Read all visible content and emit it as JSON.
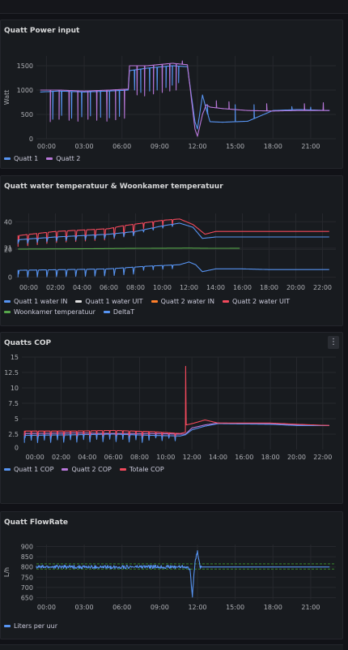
{
  "colors": {
    "blue": "#5794f2",
    "purple": "#b877d9",
    "white": "#e0e0e0",
    "orange": "#ff7f2a",
    "red": "#f2495c",
    "green": "#56a64b",
    "grid": "#26282d",
    "threshold": "#37872d"
  },
  "panels": [
    {
      "title": "Quatt Power input",
      "menu_icon": "kebab-menu-icon",
      "legend": [
        {
          "name": "Quatt 1",
          "color": "#5794f2"
        },
        {
          "name": "Quatt 2",
          "color": "#b877d9"
        }
      ]
    },
    {
      "title": "Quatt water temperatuur & Woonkamer temperatuur",
      "legend": [
        {
          "name": "Quatt 1 water IN",
          "color": "#5794f2"
        },
        {
          "name": "Quatt 1 water UIT",
          "color": "#e0e0e0"
        },
        {
          "name": "Quatt 2 water IN",
          "color": "#ff7f2a"
        },
        {
          "name": "Quatt 2 water UIT",
          "color": "#f2495c"
        },
        {
          "name": "Woonkamer temperatuur",
          "color": "#56a64b"
        },
        {
          "name": "DeltaT",
          "color": "#5794f2"
        }
      ]
    },
    {
      "title": "Quatts COP",
      "menu_label": "⋮",
      "legend": [
        {
          "name": "Quatt 1 COP",
          "color": "#5794f2"
        },
        {
          "name": "Quatt 2 COP",
          "color": "#b877d9"
        },
        {
          "name": "Totale COP",
          "color": "#f2495c"
        }
      ]
    },
    {
      "title": "Quatt FlowRate",
      "legend": [
        {
          "name": "Liters per uur",
          "color": "#5794f2"
        }
      ]
    }
  ],
  "chart_data": [
    {
      "type": "line",
      "title": "Quatt Power input",
      "ylabel": "Watt",
      "ylim": [
        0,
        1700
      ],
      "yticks": [
        "0",
        "500",
        "1000",
        "1500"
      ],
      "ytick_values": [
        0,
        500,
        1000,
        1500
      ],
      "xlim": [
        -0.8,
        23
      ],
      "xticks": [
        "00:00",
        "03:00",
        "06:00",
        "09:00",
        "12:00",
        "15:00",
        "18:00",
        "21:00"
      ],
      "xtick_values": [
        0,
        3,
        6,
        9,
        12,
        15,
        18,
        21
      ],
      "grid": true,
      "legend_position": "bottom-left",
      "series": [
        {
          "name": "Quatt 1",
          "points": [
            [
              -0.5,
              960
            ],
            [
              1,
              980
            ],
            [
              3,
              960
            ],
            [
              5,
              980
            ],
            [
              6.5,
              1000
            ],
            [
              6.6,
              1400
            ],
            [
              8,
              1450
            ],
            [
              10,
              1500
            ],
            [
              11.2,
              1480
            ],
            [
              11.8,
              350
            ],
            [
              12,
              200
            ],
            [
              12.4,
              900
            ],
            [
              12.7,
              600
            ],
            [
              13,
              350
            ],
            [
              14,
              340
            ],
            [
              15,
              350
            ],
            [
              16,
              360
            ],
            [
              18,
              580
            ],
            [
              20,
              600
            ],
            [
              22.5,
              580
            ]
          ],
          "spikes": [
            [
              0.5,
              400
            ],
            [
              1.2,
              480
            ],
            [
              2,
              420
            ],
            [
              2.8,
              450
            ],
            [
              3.5,
              470
            ],
            [
              4.3,
              440
            ],
            [
              5,
              430
            ],
            [
              5.8,
              460
            ],
            [
              7,
              1000
            ],
            [
              7.5,
              950
            ],
            [
              8.2,
              980
            ],
            [
              8.8,
              1000
            ],
            [
              9.5,
              1050
            ],
            [
              10,
              1100
            ],
            [
              10.5,
              1150
            ],
            [
              12.8,
              700
            ],
            [
              15,
              700
            ],
            [
              16.5,
              700
            ],
            [
              19.5,
              660
            ],
            [
              21,
              650
            ]
          ]
        },
        {
          "name": "Quatt 2",
          "points": [
            [
              -0.5,
              1000
            ],
            [
              1,
              1000
            ],
            [
              3,
              980
            ],
            [
              5,
              1000
            ],
            [
              6.5,
              1020
            ],
            [
              6.6,
              1500
            ],
            [
              8,
              1500
            ],
            [
              10,
              1550
            ],
            [
              11.2,
              1520
            ],
            [
              11.8,
              200
            ],
            [
              12,
              50
            ],
            [
              12.4,
              500
            ],
            [
              12.7,
              700
            ],
            [
              13,
              650
            ],
            [
              14,
              620
            ],
            [
              15,
              600
            ],
            [
              16,
              580
            ],
            [
              18,
              570
            ],
            [
              20,
              580
            ],
            [
              22.5,
              580
            ]
          ],
          "spikes": [
            [
              0.3,
              350
            ],
            [
              1,
              400
            ],
            [
              1.8,
              380
            ],
            [
              2.5,
              360
            ],
            [
              3.3,
              400
            ],
            [
              4,
              380
            ],
            [
              4.8,
              360
            ],
            [
              5.5,
              390
            ],
            [
              6.2,
              420
            ],
            [
              7.2,
              900
            ],
            [
              7.8,
              880
            ],
            [
              8.5,
              920
            ],
            [
              9.2,
              950
            ],
            [
              9.8,
              980
            ],
            [
              10.3,
              1000
            ],
            [
              10.8,
              1600
            ],
            [
              13.5,
              780
            ],
            [
              14.5,
              760
            ],
            [
              17.5,
              720
            ],
            [
              20.5,
              720
            ],
            [
              22,
              740
            ]
          ]
        }
      ]
    },
    {
      "type": "line",
      "title": "Quatt water temperatuur & Woonkamer temperatuur",
      "ylabel": "",
      "ylim": [
        -2,
        46
      ],
      "yticks": [
        "0",
        "20",
        "21",
        "40"
      ],
      "ytick_values": [
        0,
        20,
        21,
        40
      ],
      "xlim": [
        -1,
        23
      ],
      "xticks": [
        "00:00",
        "02:00",
        "04:00",
        "06:00",
        "08:00",
        "10:00",
        "12:00",
        "14:00",
        "16:00",
        "18:00",
        "20:00",
        "22:00"
      ],
      "xtick_values": [
        0,
        2,
        4,
        6,
        8,
        10,
        12,
        14,
        16,
        18,
        20,
        22
      ],
      "grid": true,
      "legend_position": "bottom-left",
      "series": [
        {
          "name": "Quatt 2 water UIT",
          "points": [
            [
              -0.8,
              30
            ],
            [
              2,
              33
            ],
            [
              4,
              34
            ],
            [
              6,
              35
            ],
            [
              7,
              37
            ],
            [
              10,
              41
            ],
            [
              11.3,
              42
            ],
            [
              12.3,
              38
            ],
            [
              13.2,
              31
            ],
            [
              14,
              33
            ],
            [
              15,
              33
            ],
            [
              18,
              33
            ],
            [
              20,
              33
            ],
            [
              22.5,
              33
            ]
          ],
          "sawtooth": {
            "from": -0.8,
            "to": 11.3,
            "period": 0.72,
            "drop": 8
          }
        },
        {
          "name": "Quatt 1 water IN",
          "points": [
            [
              -0.8,
              27
            ],
            [
              2,
              29
            ],
            [
              4,
              30
            ],
            [
              6,
              31
            ],
            [
              8,
              33
            ],
            [
              10,
              37
            ],
            [
              11.3,
              39
            ],
            [
              12.3,
              36
            ],
            [
              13,
              28
            ],
            [
              14,
              29
            ],
            [
              18,
              29
            ],
            [
              20,
              29
            ],
            [
              22.5,
              29
            ]
          ],
          "sawtooth": {
            "from": -0.8,
            "to": 11.3,
            "period": 0.72,
            "drop": 3
          }
        },
        {
          "name": "Woonkamer temperatuur",
          "points": [
            [
              -0.8,
              20.3
            ],
            [
              4,
              20.5
            ],
            [
              8,
              20.8
            ],
            [
              12,
              21
            ],
            [
              14,
              20.8
            ],
            [
              15.8,
              20.9
            ]
          ]
        },
        {
          "name": "DeltaT",
          "points": [
            [
              -0.8,
              5
            ],
            [
              3,
              5.5
            ],
            [
              6,
              6
            ],
            [
              9,
              8
            ],
            [
              11.3,
              9
            ],
            [
              12,
              11
            ],
            [
              12.5,
              9
            ],
            [
              13,
              4
            ],
            [
              14,
              6
            ],
            [
              16,
              6
            ],
            [
              18,
              5.5
            ],
            [
              20,
              5.5
            ],
            [
              22.5,
              5.5
            ]
          ],
          "sawtooth": {
            "from": -0.8,
            "to": 11.3,
            "period": 0.72,
            "drop": 5
          }
        }
      ]
    },
    {
      "type": "line",
      "title": "Quatts COP",
      "ylabel": "",
      "ylim": [
        0,
        15
      ],
      "yticks": [
        "2.5",
        "5",
        "7.5",
        "10",
        "12.5",
        "15"
      ],
      "ytick_values": [
        2.5,
        5,
        7.5,
        10,
        12.5,
        15
      ],
      "extra_ytick": {
        "label": "0",
        "value": 0.3
      },
      "xlim": [
        -1,
        23
      ],
      "xticks": [
        "00:00",
        "02:00",
        "04:00",
        "06:00",
        "08:00",
        "10:00",
        "12:00",
        "14:00",
        "16:00",
        "18:00",
        "20:00",
        "22:00"
      ],
      "xtick_values": [
        0,
        2,
        4,
        6,
        8,
        10,
        12,
        14,
        16,
        18,
        20,
        22
      ],
      "grid": true,
      "legend_position": "bottom-left",
      "series": [
        {
          "name": "Quatt 2 COP",
          "points": [
            [
              -0.8,
              2.6
            ],
            [
              3,
              2.7
            ],
            [
              6,
              2.6
            ],
            [
              9,
              2.6
            ],
            [
              11.1,
              2.5
            ],
            [
              11.5,
              2.5
            ],
            [
              12,
              3.5
            ],
            [
              13,
              4
            ],
            [
              14,
              4.3
            ],
            [
              18,
              4.2
            ],
            [
              20,
              4
            ],
            [
              22.5,
              3.9
            ]
          ],
          "sawtooth": {
            "from": -0.8,
            "to": 11.1,
            "period": 0.5,
            "drop": 1
          }
        },
        {
          "name": "Quatt 1 COP",
          "points": [
            [
              -0.8,
              2.3
            ],
            [
              3,
              2.4
            ],
            [
              6,
              2.5
            ],
            [
              9,
              2.3
            ],
            [
              11.1,
              2.2
            ],
            [
              11.5,
              2.4
            ],
            [
              12,
              3.2
            ],
            [
              13,
              3.8
            ],
            [
              14,
              4.2
            ],
            [
              18,
              4.1
            ],
            [
              20,
              3.9
            ],
            [
              22.5,
              3.9
            ]
          ],
          "sawtooth": {
            "from": -0.8,
            "to": 11.1,
            "period": 0.5,
            "drop": 1.2
          }
        },
        {
          "name": "Totale COP",
          "points": [
            [
              -0.8,
              3
            ],
            [
              3,
              3
            ],
            [
              6,
              3.1
            ],
            [
              9,
              2.9
            ],
            [
              11.1,
              2.6
            ],
            [
              11.5,
              2.8
            ],
            [
              11.52,
              13.5
            ],
            [
              11.56,
              4
            ],
            [
              12,
              4.2
            ],
            [
              13,
              4.8
            ],
            [
              14,
              4.3
            ],
            [
              18,
              4.3
            ],
            [
              20,
              4.1
            ],
            [
              22.5,
              3.9
            ]
          ],
          "sawtooth": {
            "from": -0.8,
            "to": 11.1,
            "period": 0.5,
            "drop": 0.8
          }
        }
      ]
    },
    {
      "type": "line",
      "title": "Quatt FlowRate",
      "ylabel": "L/h",
      "ylim": [
        640,
        910
      ],
      "yticks": [
        "650",
        "700",
        "750",
        "800",
        "850",
        "900"
      ],
      "ytick_values": [
        650,
        700,
        750,
        800,
        850,
        900
      ],
      "xlim": [
        -0.8,
        23
      ],
      "xticks": [
        "00:00",
        "03:00",
        "06:00",
        "09:00",
        "12:00",
        "15:00",
        "18:00",
        "21:00"
      ],
      "xtick_values": [
        0,
        3,
        6,
        9,
        12,
        15,
        18,
        21
      ],
      "grid": true,
      "legend_position": "bottom-left",
      "threshold_lines": [
        815,
        790
      ],
      "series": [
        {
          "name": "Liters per uur",
          "points": [
            [
              -0.8,
              800
            ],
            [
              2,
              801
            ],
            [
              4,
              799
            ],
            [
              6,
              800
            ],
            [
              8,
              801
            ],
            [
              10,
              800
            ],
            [
              11,
              802
            ],
            [
              11.4,
              790
            ],
            [
              11.6,
              660
            ],
            [
              11.8,
              820
            ],
            [
              12,
              880
            ],
            [
              12.2,
              800
            ],
            [
              14,
              800
            ],
            [
              18,
              800
            ],
            [
              22.5,
              800
            ]
          ],
          "noise": {
            "from": -0.8,
            "to": 12.3,
            "amp": 8
          }
        }
      ]
    }
  ]
}
